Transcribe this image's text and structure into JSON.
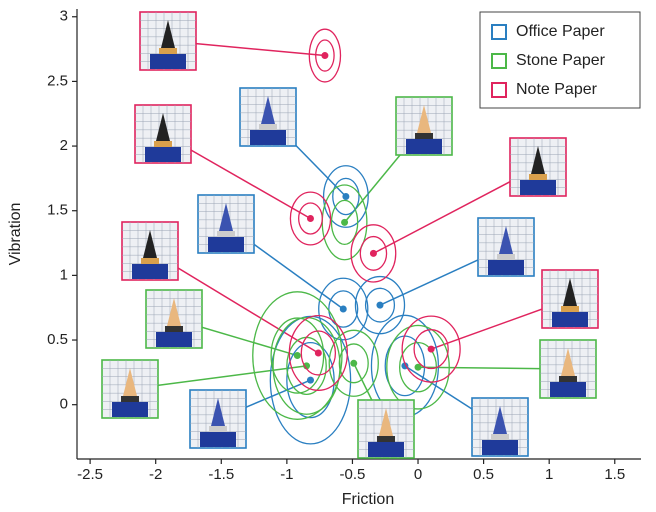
{
  "chart_data": {
    "type": "scatter",
    "x_label": "Friction",
    "y_label": "Vibration",
    "xlim": [
      -2.6,
      1.7
    ],
    "xticks": [
      -2.5,
      -2,
      -1.5,
      -1,
      -0.5,
      0,
      0.5,
      1,
      1.5
    ],
    "ylim": [
      -0.42,
      3.06
    ],
    "yticks": [
      0,
      0.5,
      1,
      1.5,
      2,
      2.5,
      3
    ],
    "legend": "upper right",
    "series": [
      {
        "name": "Office Paper",
        "color": "#2a7fc1",
        "x": [
          -0.55,
          -0.57,
          -0.29,
          -0.82,
          -0.1
        ],
        "values": [
          1.61,
          0.74,
          0.77,
          0.19,
          0.3
        ],
        "sd_x": [
          0.1,
          0.11,
          0.11,
          0.18,
          0.15
        ],
        "sd_y": [
          0.14,
          0.14,
          0.13,
          0.29,
          0.23
        ]
      },
      {
        "name": "Stone Paper",
        "color": "#4cb848",
        "x": [
          -0.56,
          -0.92,
          -0.49,
          0.0,
          -0.85
        ],
        "values": [
          1.41,
          0.38,
          0.32,
          0.29,
          0.3
        ],
        "sd_x": [
          0.1,
          0.2,
          0.11,
          0.14,
          0.15
        ],
        "sd_y": [
          0.17,
          0.29,
          0.15,
          0.19,
          0.22
        ]
      },
      {
        "name": "Note Paper",
        "color": "#e0245e",
        "x": [
          -0.71,
          -0.82,
          -0.34,
          -0.76,
          0.1
        ],
        "values": [
          2.7,
          1.44,
          1.17,
          0.4,
          0.43
        ],
        "sd_x": [
          0.07,
          0.09,
          0.1,
          0.13,
          0.13
        ],
        "sd_y": [
          0.12,
          0.12,
          0.13,
          0.17,
          0.15
        ]
      }
    ]
  }
}
